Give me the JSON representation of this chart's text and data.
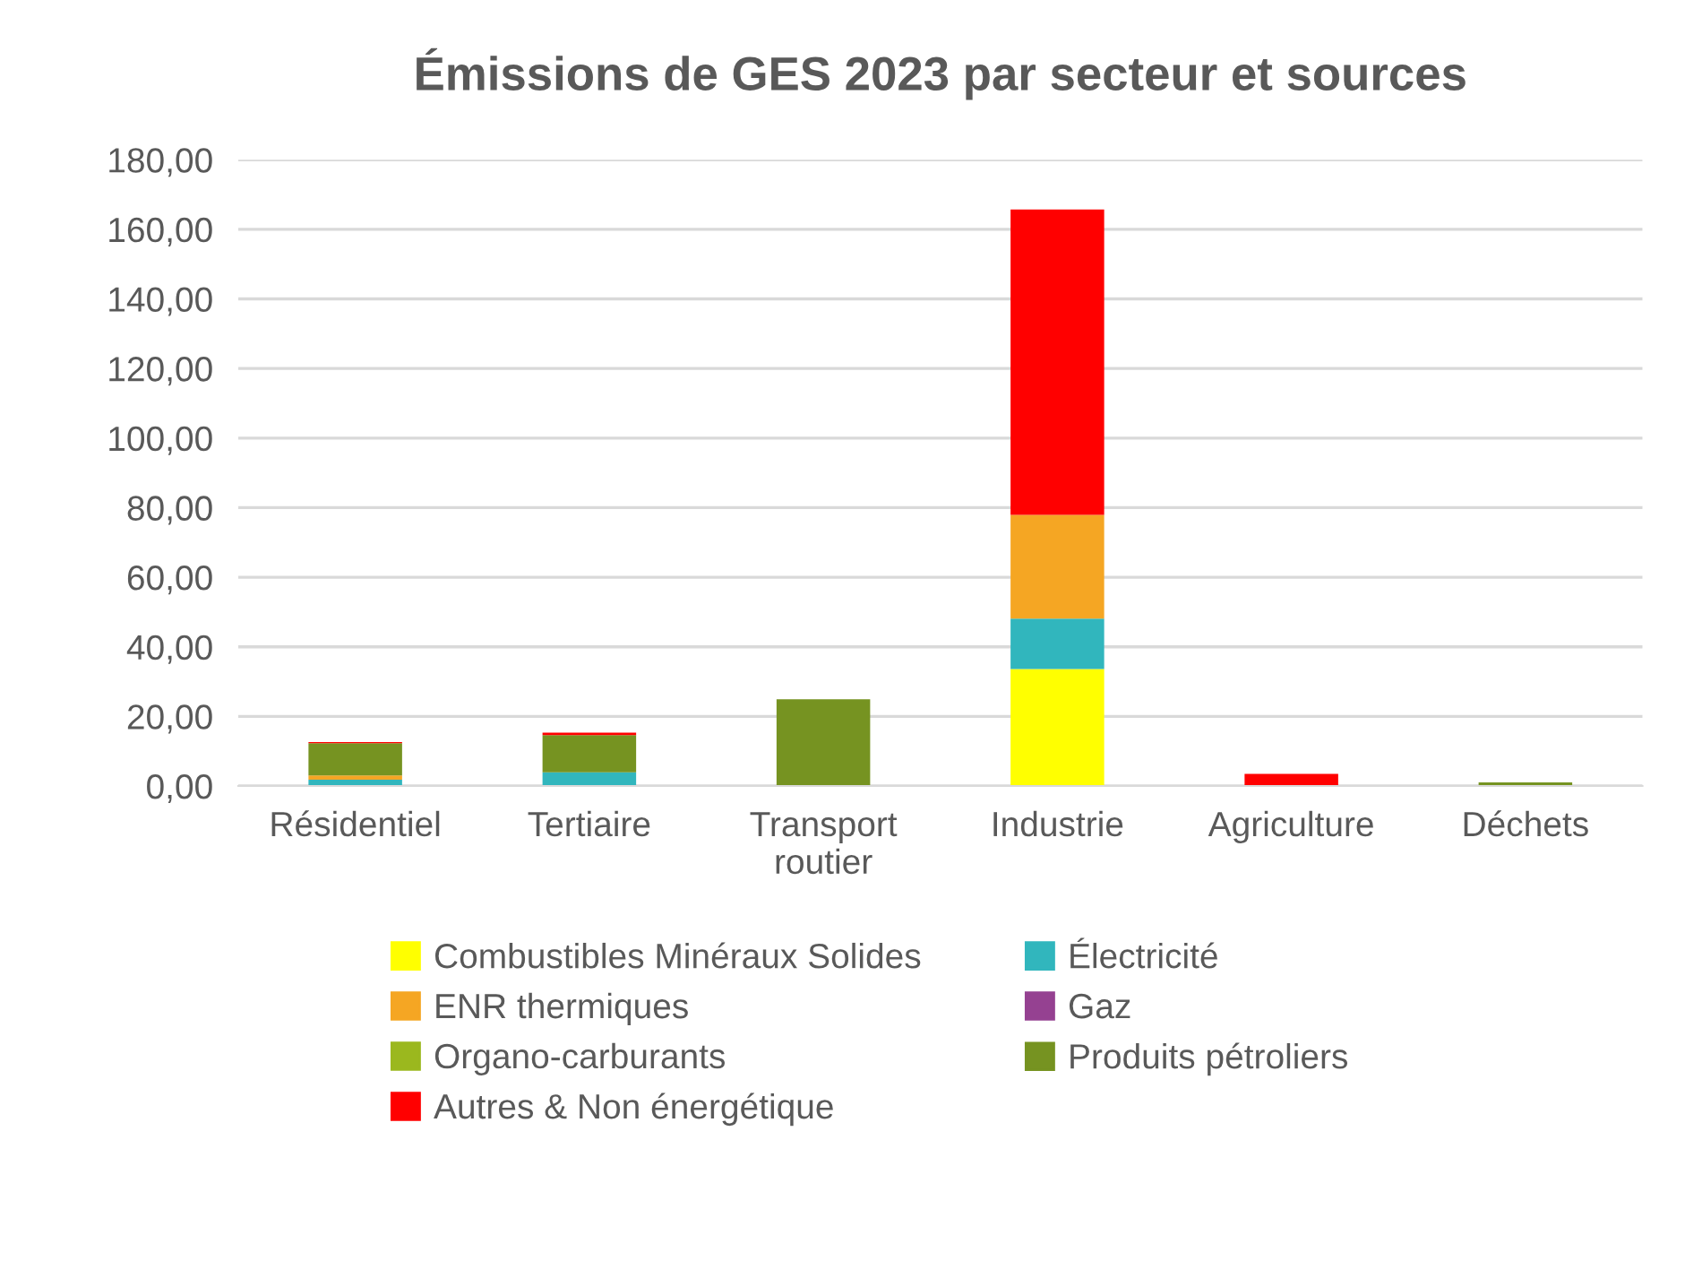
{
  "chart_data": {
    "type": "bar",
    "stacked": true,
    "title": "Émissions de GES 2023 par secteur et sources",
    "categories": [
      "Résidentiel",
      "Tertiaire",
      "Transport routier",
      "Industrie",
      "Agriculture",
      "Déchets"
    ],
    "series": [
      {
        "name": "Combustibles Minéraux Solides",
        "color": "#ffff00",
        "values": [
          0,
          0,
          0,
          33.6,
          0,
          0
        ]
      },
      {
        "name": "Électricité",
        "color": "#31b6bd",
        "values": [
          1.8,
          3.9,
          0,
          14.5,
          0,
          0
        ]
      },
      {
        "name": "ENR thermiques",
        "color": "#f5a623",
        "values": [
          1.2,
          0,
          0,
          29.8,
          0,
          0
        ]
      },
      {
        "name": "Gaz",
        "color": "#954191",
        "values": [
          0,
          0,
          0,
          0,
          0,
          0
        ]
      },
      {
        "name": "Organo-carburants",
        "color": "#9bb81e",
        "values": [
          0,
          0,
          0,
          0,
          0,
          0
        ]
      },
      {
        "name": "Produits pétroliers",
        "color": "#769321",
        "values": [
          9.3,
          10.7,
          24.9,
          0,
          0,
          1.0
        ]
      },
      {
        "name": "Autres & Non énergétique",
        "color": "#ff0000",
        "values": [
          0.3,
          0.7,
          0,
          87.8,
          3.5,
          0
        ]
      }
    ],
    "ylim": [
      0,
      180
    ],
    "yticks": [
      {
        "value": 0,
        "label": "0,00"
      },
      {
        "value": 20,
        "label": "20,00"
      },
      {
        "value": 40,
        "label": "40,00"
      },
      {
        "value": 60,
        "label": "60,00"
      },
      {
        "value": 80,
        "label": "80,00"
      },
      {
        "value": 100,
        "label": "100,00"
      },
      {
        "value": 120,
        "label": "120,00"
      },
      {
        "value": 140,
        "label": "140,00"
      },
      {
        "value": 160,
        "label": "160,00"
      },
      {
        "value": 180,
        "label": "180,00"
      }
    ],
    "grid": "y",
    "legend": "bottom"
  }
}
